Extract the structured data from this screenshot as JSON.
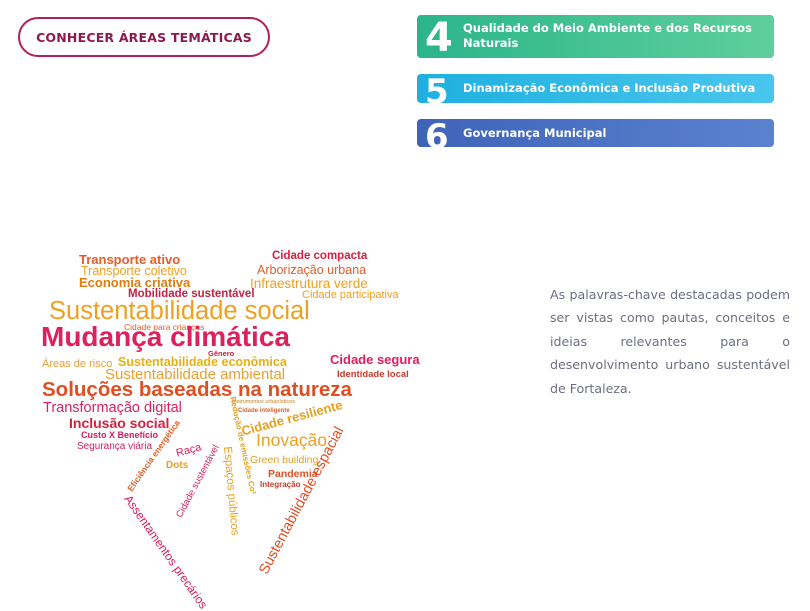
{
  "cta": {
    "label": "CONHECER ÁREAS TEMÁTICAS"
  },
  "themes": [
    {
      "number": "4",
      "label": "Qualidade do Meio Ambiente e dos Recursos Naturais",
      "color": "#2bb58a"
    },
    {
      "number": "5",
      "label": "Dinamização Econômica e Inclusão Produtiva",
      "color": "#1fb0df"
    },
    {
      "number": "6",
      "label": "Governança Municipal",
      "color": "#3e63b8"
    }
  ],
  "word_cloud": {
    "words": [
      "Transporte ativo",
      "Transporte coletivo",
      "Economia criativa",
      "Mobilidade sustentável",
      "Cidade compacta",
      "Arborização urbana",
      "Infraestrutura verde",
      "Cidade participativa",
      "Sustentabilidade social",
      "Cidade para crianças",
      "Mudança climática",
      "Gênero",
      "Áreas de risco",
      "Sustentabilidade econômica",
      "Cidade segura",
      "Sustentabilidade ambiental",
      "Identidade local",
      "Soluções baseadas na natureza",
      "Transformação digital",
      "Instrumentos urbanísticos",
      "Cidade inteligente",
      "Inclusão social",
      "Custo X Benefício",
      "Cidade resiliente",
      "Segurança viária",
      "Inovação",
      "Raça",
      "Dots",
      "Green building",
      "Pandemia",
      "Integração",
      "Eficiência energética",
      "Cidade sustentável",
      "Redução de emissões Co²",
      "Espaços públicos",
      "Sustentabilidade espacial",
      "Assentamentos precários"
    ]
  },
  "description": "As palavras-chave destacadas podem ser vistas como pautas, conceitos e ideias relevantes para o desenvolvimento urbano sustentável de Fortaleza."
}
